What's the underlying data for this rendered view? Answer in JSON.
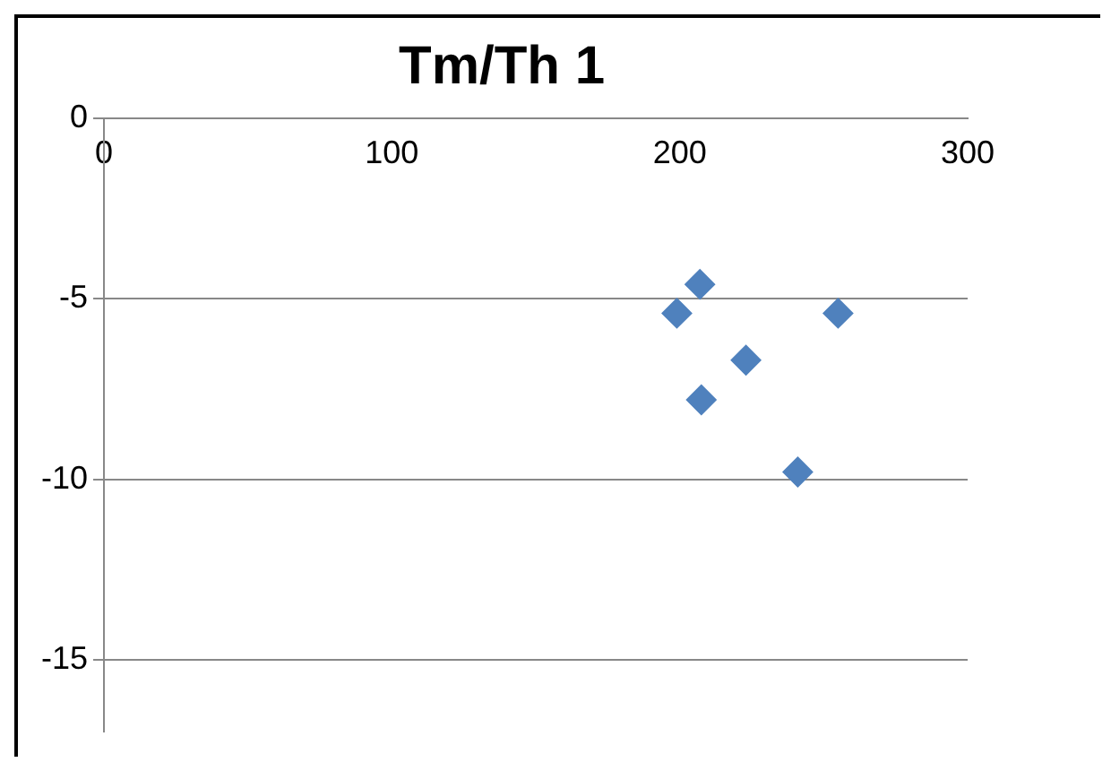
{
  "chart_data": {
    "type": "scatter",
    "title": "Tm/Th 1",
    "x": [
      199,
      207,
      255,
      223,
      207.5,
      241
    ],
    "values": [
      -5.4,
      -4.6,
      -5.4,
      -6.7,
      -7.8,
      -9.8
    ],
    "color": "#4f81bd",
    "marker": "diamond",
    "grid": "y",
    "legend": false,
    "xlim": [
      0,
      300
    ],
    "xticks": [
      0,
      100,
      200,
      300
    ],
    "ylim": [
      -17,
      0
    ],
    "yticks": [
      0,
      -5,
      -10,
      -15
    ]
  }
}
